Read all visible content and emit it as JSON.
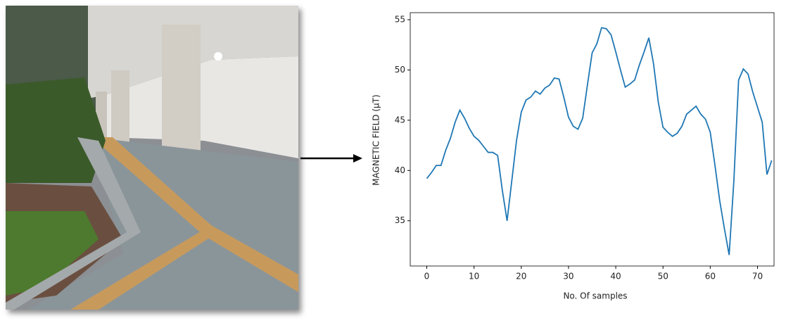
{
  "chart_data": {
    "type": "line",
    "xlabel": "No. Of samples",
    "ylabel": "MAGNETIC FIELD (µT)",
    "x": [
      0,
      1,
      2,
      3,
      4,
      5,
      6,
      7,
      8,
      9,
      10,
      11,
      12,
      13,
      14,
      15,
      16,
      17,
      18,
      19,
      20,
      21,
      22,
      23,
      24,
      25,
      26,
      27,
      28,
      29,
      30,
      31,
      32,
      33,
      34,
      35,
      36,
      37,
      38,
      39,
      40,
      41,
      42,
      43,
      44,
      45,
      46,
      47,
      48,
      49,
      50,
      51,
      52,
      53,
      54,
      55,
      56,
      57,
      58,
      59,
      60,
      61,
      62,
      63,
      64,
      65,
      66,
      67,
      68,
      69,
      70,
      71,
      72,
      73
    ],
    "series": [
      {
        "color": "#1f77b4",
        "values": [
          39.2,
          39.8,
          40.5,
          40.5,
          42,
          43.2,
          44.8,
          46,
          45.2,
          44.2,
          43.4,
          43,
          42.4,
          41.8,
          41.8,
          41.5,
          38,
          35,
          39,
          43,
          45.8,
          47,
          47.3,
          47.9,
          47.6,
          48.2,
          48.5,
          49.2,
          49.1,
          47.3,
          45.3,
          44.4,
          44.1,
          45.2,
          48.5,
          51.7,
          52.6,
          54.2,
          54.1,
          53.5,
          51.8,
          50,
          48.3,
          48.6,
          49,
          50.5,
          51.8,
          53.2,
          50.6,
          46.8,
          44.3,
          43.8,
          43.4,
          43.7,
          44.4,
          45.6,
          46,
          46.4,
          45.6,
          45.1,
          43.8,
          40.5,
          37,
          34.2,
          31.6,
          39,
          49,
          50.1,
          49.6,
          47.8,
          46.3,
          44.8,
          39.6,
          41
        ]
      }
    ],
    "xlim": [
      -3.5,
      73.5
    ],
    "ylim": [
      30.5,
      55.7
    ],
    "xticks": [
      0,
      10,
      20,
      30,
      40,
      50,
      60,
      70
    ],
    "yticks": [
      35,
      40,
      45,
      50,
      55
    ]
  }
}
